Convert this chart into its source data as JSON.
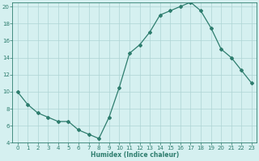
{
  "x": [
    0,
    1,
    2,
    3,
    4,
    5,
    6,
    7,
    8,
    9,
    10,
    11,
    12,
    13,
    14,
    15,
    16,
    17,
    18,
    19,
    20,
    21,
    22,
    23
  ],
  "y": [
    10,
    8.5,
    7.5,
    7.0,
    6.5,
    6.5,
    5.5,
    5.0,
    4.5,
    7.0,
    10.5,
    14.5,
    15.5,
    17.0,
    19.0,
    19.5,
    20.0,
    20.5,
    19.5,
    17.5,
    15.0,
    14.0,
    12.5,
    11.0
  ],
  "xlabel": "Humidex (Indice chaleur)",
  "ylabel": "",
  "xlim": [
    -0.5,
    23.5
  ],
  "ylim": [
    4,
    20.5
  ],
  "yticks": [
    4,
    6,
    8,
    10,
    12,
    14,
    16,
    18,
    20
  ],
  "xticks": [
    0,
    1,
    2,
    3,
    4,
    5,
    6,
    7,
    8,
    9,
    10,
    11,
    12,
    13,
    14,
    15,
    16,
    17,
    18,
    19,
    20,
    21,
    22,
    23
  ],
  "line_color": "#2e7d6e",
  "marker": "D",
  "marker_size": 2.0,
  "bg_color": "#d5f0f0",
  "grid_color": "#aed4d4",
  "label_fontsize": 5.5,
  "tick_fontsize": 5.0,
  "linewidth": 0.9
}
